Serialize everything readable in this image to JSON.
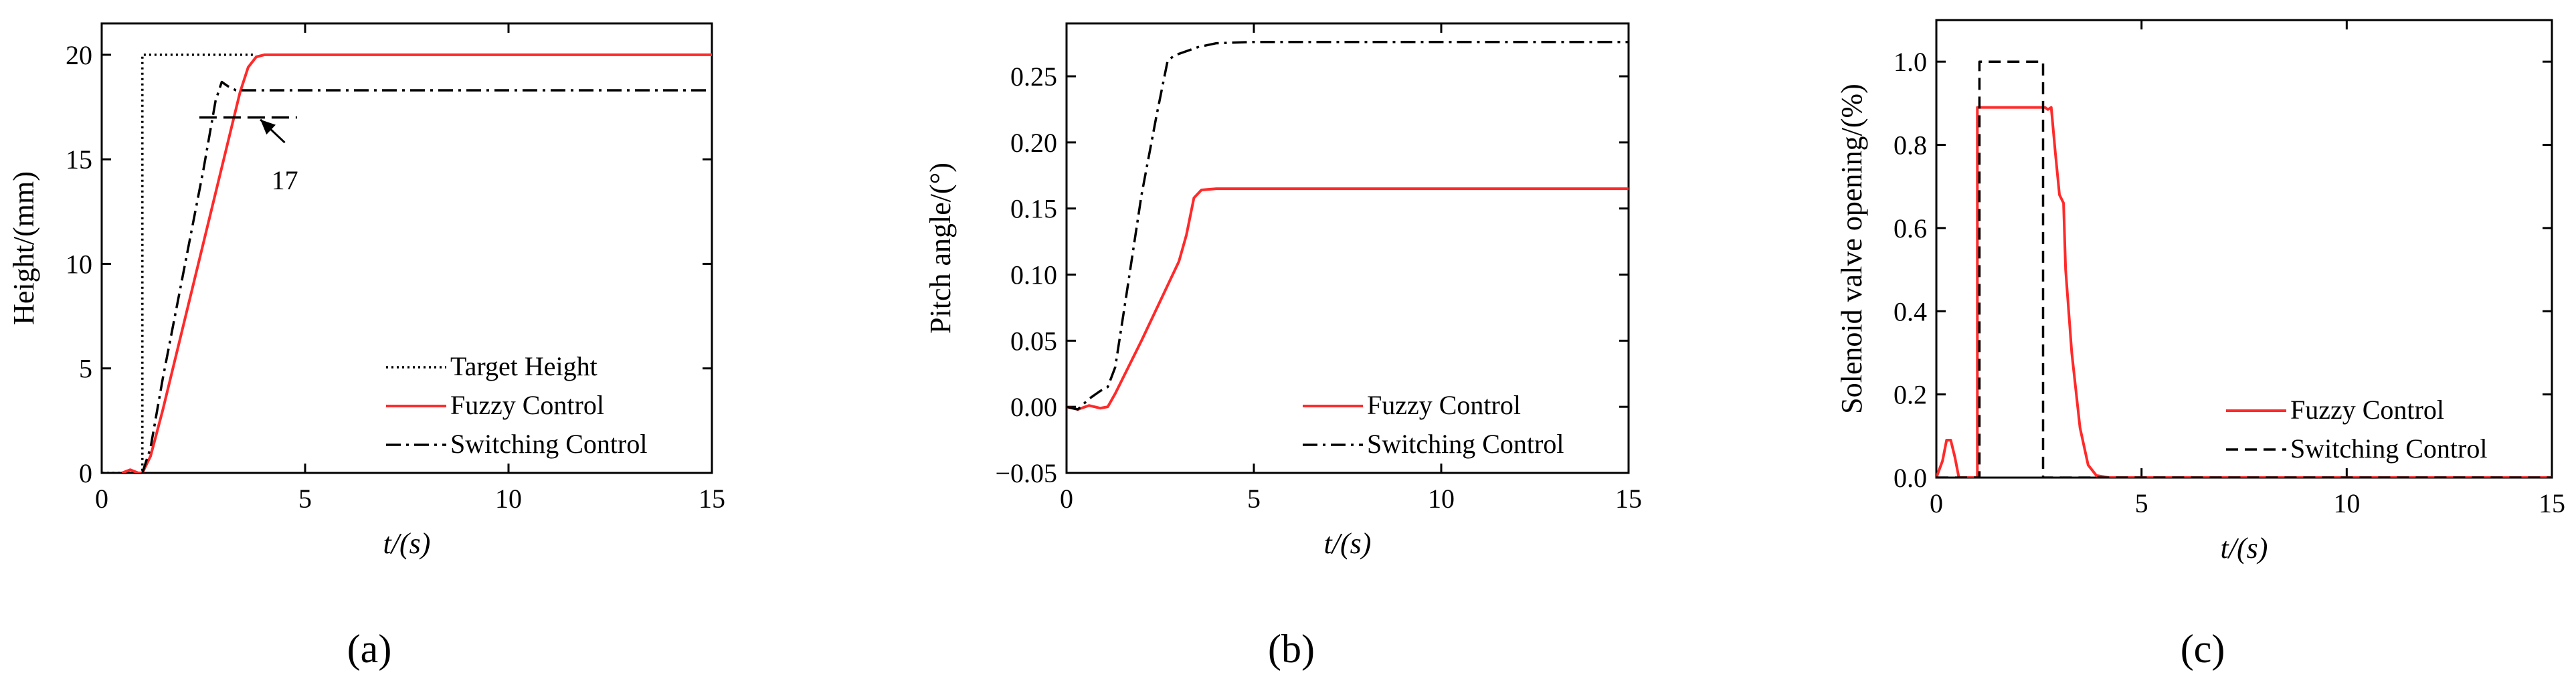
{
  "panel_labels": [
    "(a)",
    "(b)",
    "(c)"
  ],
  "colors": {
    "fuzzy": "#ff2a2a",
    "switching": "#000000",
    "target": "#000000",
    "axis": "#000000"
  },
  "chart_data": [
    {
      "type": "line",
      "panel": "(a)",
      "xlabel": "t/(s)",
      "ylabel": "Height/(mm)",
      "xlim": [
        0,
        15
      ],
      "ylim": [
        0,
        21.5
      ],
      "xticks": [
        0,
        5,
        10,
        15
      ],
      "yticks": [
        0,
        5,
        10,
        15,
        20
      ],
      "grid": false,
      "legend_position": "bottom-right",
      "series": [
        {
          "name": "Target Height",
          "style": "dotted",
          "x": [
            0,
            1.0,
            1.0,
            3.8
          ],
          "y": [
            0,
            0,
            20,
            20
          ]
        },
        {
          "name": "Fuzzy Control",
          "style": "solid",
          "x": [
            0.5,
            0.7,
            0.9,
            1.0,
            1.2,
            1.5,
            2.0,
            2.5,
            3.0,
            3.4,
            3.6,
            3.8,
            4.0,
            5,
            10,
            15
          ],
          "y": [
            0,
            0.15,
            0,
            0,
            0.8,
            3.0,
            7.0,
            11.0,
            15.0,
            18.2,
            19.4,
            19.9,
            20.0,
            20.0,
            20.0,
            20.0
          ]
        },
        {
          "name": "Switching Control",
          "style": "dashdot",
          "x": [
            1.0,
            1.2,
            1.5,
            2.0,
            2.5,
            2.8,
            2.95,
            3.1,
            3.3,
            3.6,
            4.0,
            5,
            10,
            15
          ],
          "y": [
            0,
            1.2,
            4.5,
            9.5,
            14.5,
            17.8,
            18.7,
            18.5,
            18.3,
            18.3,
            18.3,
            18.3,
            18.3,
            18.3
          ]
        }
      ],
      "annotations": [
        {
          "text": "17",
          "y": 17,
          "x_from": 2.4,
          "x_to": 4.8,
          "arrow_from": [
            4.5,
            15.8
          ],
          "arrow_to": [
            3.9,
            16.9
          ],
          "text_at": [
            4.5,
            14.2
          ]
        }
      ]
    },
    {
      "type": "line",
      "panel": "(b)",
      "xlabel": "t/(s)",
      "ylabel": "Pitch angle/(°)",
      "xlim": [
        0,
        15
      ],
      "ylim": [
        -0.05,
        0.29
      ],
      "xticks": [
        0,
        5,
        10,
        15
      ],
      "yticks": [
        -0.05,
        0.0,
        0.05,
        0.1,
        0.15,
        0.2,
        0.25
      ],
      "ytick_labels": [
        "−0.05",
        "0.00",
        "0.05",
        "0.10",
        "0.15",
        "0.20",
        "0.25"
      ],
      "grid": false,
      "legend_position": "bottom-right",
      "series": [
        {
          "name": "Fuzzy Control",
          "style": "solid",
          "x": [
            0,
            0.3,
            0.6,
            0.9,
            1.1,
            1.3,
            2.0,
            2.5,
            3.0,
            3.2,
            3.4,
            3.6,
            4.0,
            5,
            10,
            15
          ],
          "y": [
            0,
            -0.002,
            0.001,
            -0.001,
            0.0,
            0.01,
            0.05,
            0.08,
            0.11,
            0.13,
            0.158,
            0.164,
            0.165,
            0.165,
            0.165,
            0.165
          ]
        },
        {
          "name": "Switching Control",
          "style": "dashdot",
          "x": [
            0,
            0.3,
            0.6,
            0.9,
            1.1,
            1.3,
            1.6,
            2.0,
            2.4,
            2.7,
            2.9,
            3.1,
            3.5,
            4.0,
            5,
            10,
            15
          ],
          "y": [
            0,
            -0.002,
            0.006,
            0.012,
            0.015,
            0.03,
            0.085,
            0.16,
            0.22,
            0.262,
            0.266,
            0.268,
            0.272,
            0.275,
            0.276,
            0.276,
            0.276
          ]
        }
      ]
    },
    {
      "type": "line",
      "panel": "(c)",
      "xlabel": "t/(s)",
      "ylabel": "Solenoid valve opening/(%)",
      "xlim": [
        0,
        15
      ],
      "ylim": [
        0,
        1.1
      ],
      "xticks": [
        0,
        5,
        10,
        15
      ],
      "yticks": [
        0.0,
        0.2,
        0.4,
        0.6,
        0.8,
        1.0
      ],
      "ytick_labels": [
        "0.0",
        "0.2",
        "0.4",
        "0.6",
        "0.8",
        "1.0"
      ],
      "grid": false,
      "legend_position": "bottom-right",
      "series": [
        {
          "name": "Fuzzy Control",
          "style": "solid",
          "x": [
            0,
            0.15,
            0.25,
            0.35,
            0.45,
            0.55,
            0.6,
            1.0,
            1.0,
            2.65,
            2.72,
            2.8,
            2.9,
            3.0,
            3.1,
            3.15,
            3.3,
            3.5,
            3.7,
            3.9,
            4.2,
            5,
            10,
            15
          ],
          "y": [
            0,
            0.04,
            0.09,
            0.09,
            0.05,
            0,
            0,
            0,
            0.89,
            0.89,
            0.885,
            0.89,
            0.78,
            0.68,
            0.66,
            0.5,
            0.3,
            0.12,
            0.03,
            0.005,
            0,
            0,
            0,
            0
          ]
        },
        {
          "name": "Switching Control",
          "style": "dashed",
          "x": [
            0,
            1.05,
            1.05,
            2.6,
            2.6,
            15
          ],
          "y": [
            0,
            0,
            1.0,
            1.0,
            0,
            0
          ]
        }
      ]
    }
  ]
}
